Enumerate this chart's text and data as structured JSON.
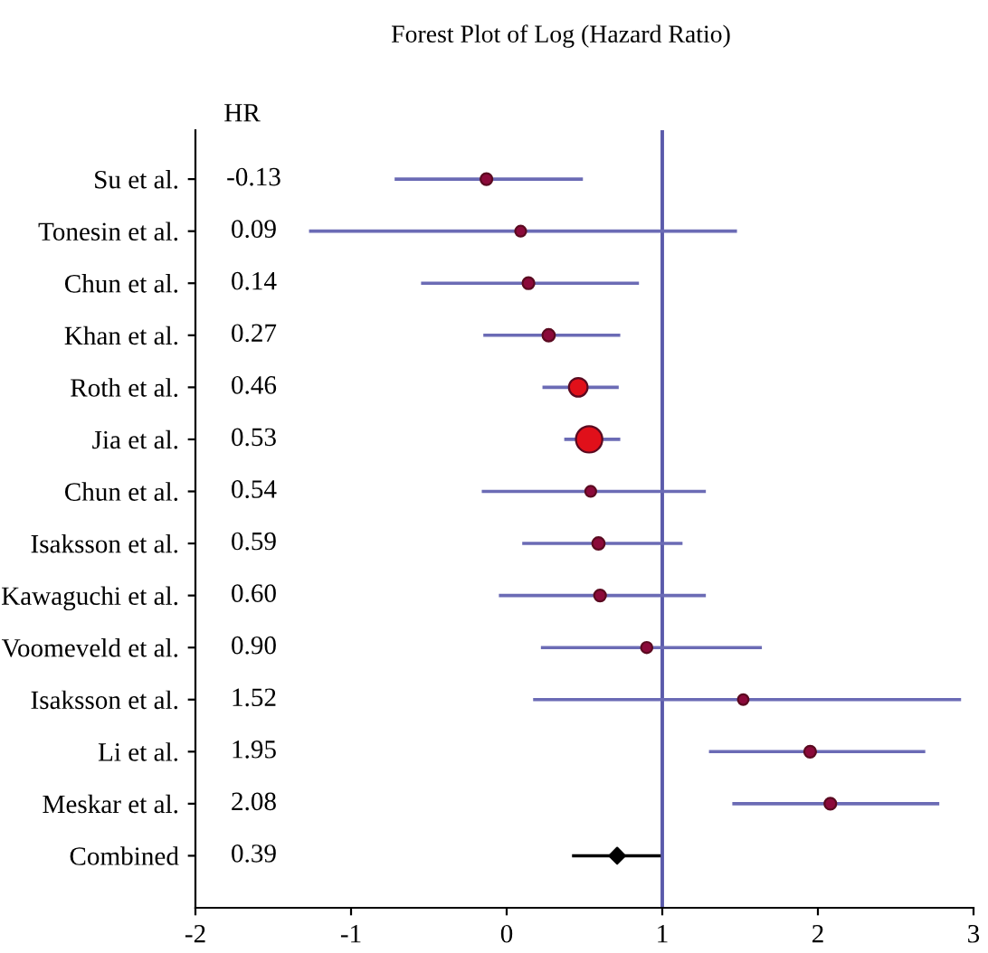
{
  "chart_data": {
    "type": "scatter",
    "title": "Forest Plot of Log (Hazard Ratio)",
    "orientation": "horizontal",
    "categories": [
      "Su et al.",
      "Tonesin et al.",
      "Chun et al.",
      "Khan et al.",
      "Roth et al.",
      "Jia et al.",
      "Chun et al.",
      "Isaksson et al.",
      "Kawaguchi et al.",
      "Voomeveld et al.",
      "Isaksson et al.",
      "Li et al.",
      "Meskar et al.",
      "Combined"
    ],
    "series": [
      {
        "marker": "circle",
        "values": [
          -0.13,
          0.09,
          0.14,
          0.27,
          0.46,
          0.53,
          0.54,
          0.59,
          0.6,
          0.9,
          1.52,
          1.95,
          2.08,
          null
        ],
        "colors": [
          "#8b0a3a",
          "#8b0a3a",
          "#8b0a3a",
          "#8b0a3a",
          "#e0101a",
          "#e0101a",
          "#8b0a3a",
          "#8b0a3a",
          "#8b0a3a",
          "#8b0a3a",
          "#8b0a3a",
          "#8b0a3a",
          "#8b0a3a",
          null
        ],
        "sizes": [
          0.2,
          0.17,
          0.2,
          0.22,
          0.5,
          1,
          0.17,
          0.22,
          0.2,
          0.18,
          0.16,
          0.2,
          0.2,
          null
        ],
        "errors": [
          [
            -0.72,
            0.49
          ],
          [
            -1.27,
            1.48
          ],
          [
            -0.55,
            0.85
          ],
          [
            -0.15,
            0.73
          ],
          [
            0.23,
            0.72
          ],
          [
            0.37,
            0.73
          ],
          [
            -0.16,
            1.28
          ],
          [
            0.1,
            1.13
          ],
          [
            -0.05,
            1.28
          ],
          [
            0.22,
            1.64
          ],
          [
            0.17,
            2.92
          ],
          [
            1.3,
            2.69
          ],
          [
            1.45,
            2.78
          ],
          null
        ]
      },
      {
        "marker": "diamond",
        "color": "#000000",
        "values": [
          null,
          null,
          null,
          null,
          null,
          null,
          null,
          null,
          null,
          null,
          null,
          null,
          null,
          0.71
        ],
        "errors": [
          null,
          null,
          null,
          null,
          null,
          null,
          null,
          null,
          null,
          null,
          null,
          null,
          null,
          [
            0.42,
            0.99
          ]
        ]
      }
    ],
    "value_labels": [
      "-0.13",
      "0.09",
      "0.14",
      "0.27",
      "0.46",
      "0.53",
      "0.54",
      "0.59",
      "0.60",
      "0.90",
      "1.52",
      "1.95",
      "2.08",
      "0.39"
    ],
    "annotations": [
      "HR"
    ],
    "ref_lines": [
      {
        "axis": "x",
        "value": 1,
        "color": "#5a5aaa"
      }
    ],
    "xlim": [
      -2,
      3
    ],
    "xticks": [
      -2,
      -1,
      0,
      1,
      2,
      3
    ],
    "grid": false,
    "legend": false
  }
}
